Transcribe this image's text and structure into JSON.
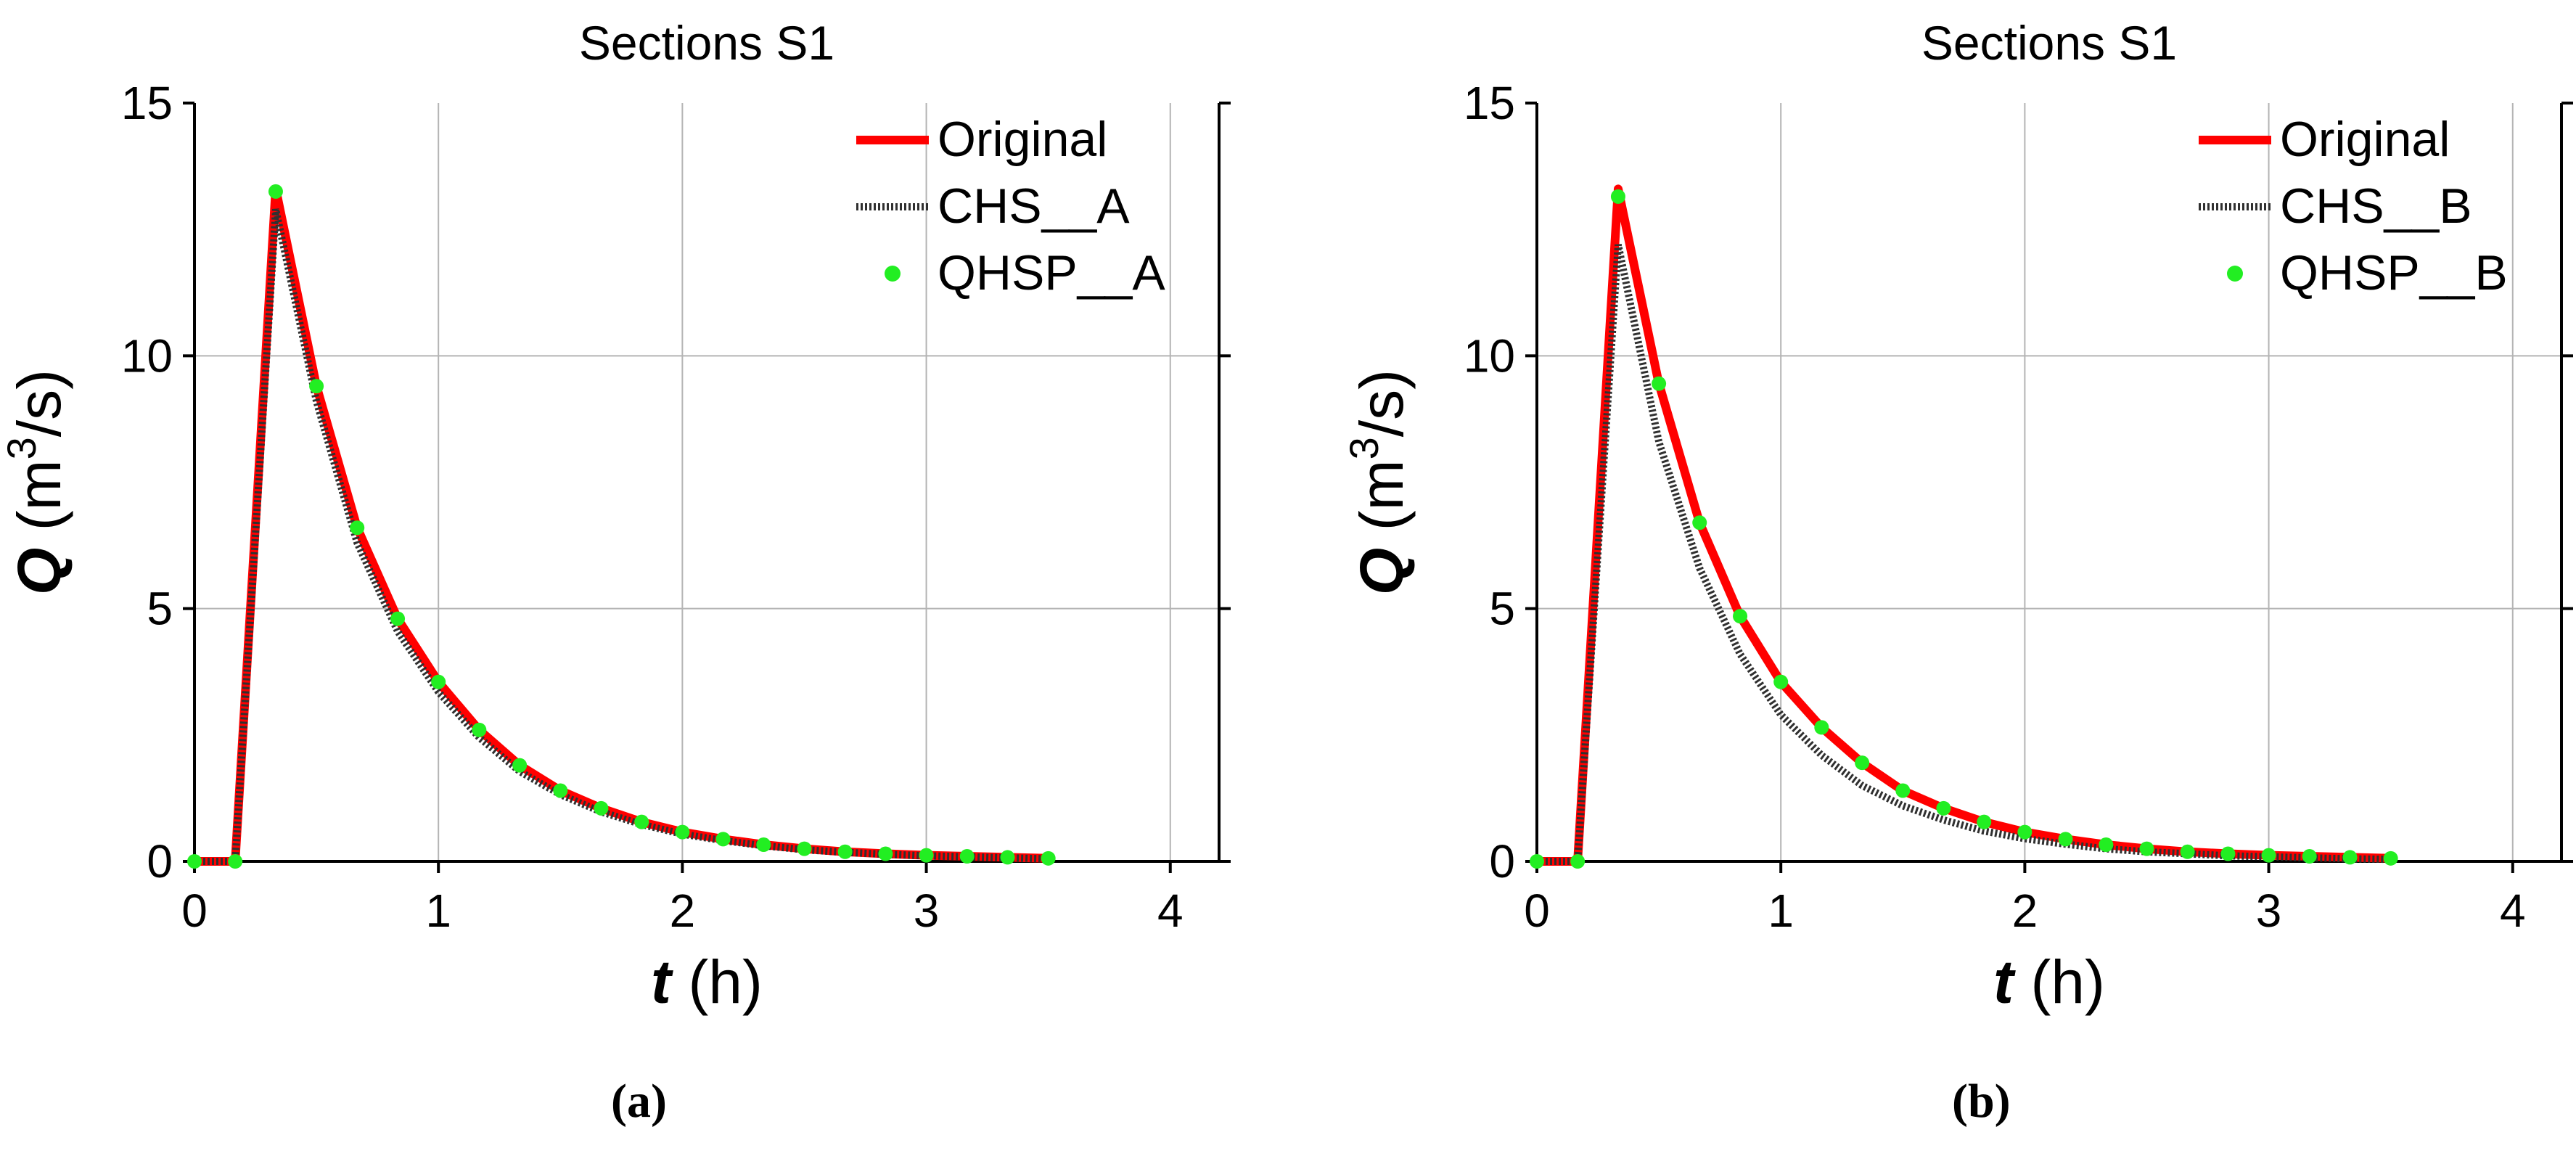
{
  "colors": {
    "original": "#ff0000",
    "chs": "#303030",
    "qhsp": "#22ee22",
    "grid": "#b4b4b4",
    "axis": "#000000"
  },
  "chart_data": [
    {
      "type": "line",
      "title": "Sections S1",
      "xlabel_var": "t",
      "xlabel_unit": "(h)",
      "ylabel_var": "Q",
      "ylabel_unit_pre": "(m",
      "ylabel_unit_sup": "3",
      "ylabel_unit_post": "/s)",
      "xlim": [
        0,
        4.2
      ],
      "ylim": [
        0,
        15
      ],
      "xticks": [
        0,
        1,
        2,
        3,
        4
      ],
      "yticks": [
        0,
        5,
        10,
        15
      ],
      "grid": true,
      "legend_position": "top-right",
      "panel_label": "(a)",
      "series": [
        {
          "name": "Original",
          "style": "line",
          "x": [
            0,
            0.167,
            0.333,
            0.5,
            0.667,
            0.833,
            1.0,
            1.167,
            1.333,
            1.5,
            1.667,
            1.833,
            2.0,
            2.167,
            2.333,
            2.5,
            2.667,
            2.833,
            3.0,
            3.167,
            3.333,
            3.5
          ],
          "y": [
            0,
            0,
            13.3,
            9.4,
            6.6,
            4.8,
            3.55,
            2.6,
            1.9,
            1.4,
            1.05,
            0.78,
            0.58,
            0.44,
            0.33,
            0.25,
            0.19,
            0.15,
            0.12,
            0.1,
            0.08,
            0.06
          ]
        },
        {
          "name": "CHS__A",
          "style": "dashed",
          "x": [
            0,
            0.167,
            0.333,
            0.5,
            0.667,
            0.833,
            1.0,
            1.167,
            1.333,
            1.5,
            1.667,
            1.833,
            2.0,
            2.167,
            2.333,
            2.5,
            2.667,
            2.833,
            3.0,
            3.167,
            3.333,
            3.5
          ],
          "y": [
            0,
            0,
            12.9,
            9.1,
            6.3,
            4.55,
            3.35,
            2.45,
            1.78,
            1.32,
            0.98,
            0.73,
            0.54,
            0.41,
            0.31,
            0.23,
            0.18,
            0.14,
            0.11,
            0.09,
            0.07,
            0.05
          ]
        },
        {
          "name": "QHSP__A",
          "style": "markers",
          "x": [
            0,
            0.167,
            0.333,
            0.5,
            0.667,
            0.833,
            1.0,
            1.167,
            1.333,
            1.5,
            1.667,
            1.833,
            2.0,
            2.167,
            2.333,
            2.5,
            2.667,
            2.833,
            3.0,
            3.167,
            3.333,
            3.5
          ],
          "y": [
            0,
            0,
            13.25,
            9.4,
            6.6,
            4.8,
            3.55,
            2.6,
            1.9,
            1.4,
            1.05,
            0.78,
            0.58,
            0.44,
            0.33,
            0.25,
            0.19,
            0.15,
            0.12,
            0.1,
            0.08,
            0.06
          ]
        }
      ]
    },
    {
      "type": "line",
      "title": "Sections S1",
      "xlabel_var": "t",
      "xlabel_unit": "(h)",
      "ylabel_var": "Q",
      "ylabel_unit_pre": "(m",
      "ylabel_unit_sup": "3",
      "ylabel_unit_post": "/s)",
      "xlim": [
        0,
        4.2
      ],
      "ylim": [
        0,
        15
      ],
      "xticks": [
        0,
        1,
        2,
        3,
        4
      ],
      "yticks": [
        0,
        5,
        10,
        15
      ],
      "grid": true,
      "legend_position": "top-right",
      "panel_label": "(b)",
      "series": [
        {
          "name": "Original",
          "style": "line",
          "x": [
            0,
            0.167,
            0.333,
            0.5,
            0.667,
            0.833,
            1.0,
            1.167,
            1.333,
            1.5,
            1.667,
            1.833,
            2.0,
            2.167,
            2.333,
            2.5,
            2.667,
            2.833,
            3.0,
            3.167,
            3.333,
            3.5
          ],
          "y": [
            0,
            0,
            13.3,
            9.45,
            6.7,
            4.85,
            3.55,
            2.65,
            1.95,
            1.4,
            1.05,
            0.78,
            0.58,
            0.44,
            0.33,
            0.25,
            0.19,
            0.15,
            0.12,
            0.1,
            0.08,
            0.06
          ]
        },
        {
          "name": "CHS__B",
          "style": "dashed",
          "x": [
            0,
            0.167,
            0.333,
            0.5,
            0.667,
            0.833,
            1.0,
            1.167,
            1.333,
            1.5,
            1.667,
            1.833,
            2.0,
            2.167,
            2.333,
            2.5,
            2.667,
            2.833,
            3.0,
            3.167,
            3.333,
            3.5
          ],
          "y": [
            0,
            0,
            12.2,
            8.3,
            5.8,
            4.1,
            2.9,
            2.1,
            1.5,
            1.1,
            0.82,
            0.6,
            0.45,
            0.34,
            0.25,
            0.19,
            0.15,
            0.11,
            0.09,
            0.07,
            0.05,
            0.04
          ]
        },
        {
          "name": "QHSP__B",
          "style": "markers",
          "x": [
            0,
            0.167,
            0.333,
            0.5,
            0.667,
            0.833,
            1.0,
            1.167,
            1.333,
            1.5,
            1.667,
            1.833,
            2.0,
            2.167,
            2.333,
            2.5,
            2.667,
            2.833,
            3.0,
            3.167,
            3.333,
            3.5
          ],
          "y": [
            0,
            0,
            13.15,
            9.45,
            6.7,
            4.85,
            3.55,
            2.65,
            1.95,
            1.4,
            1.05,
            0.78,
            0.58,
            0.44,
            0.33,
            0.25,
            0.19,
            0.15,
            0.12,
            0.1,
            0.08,
            0.06
          ]
        }
      ]
    }
  ]
}
